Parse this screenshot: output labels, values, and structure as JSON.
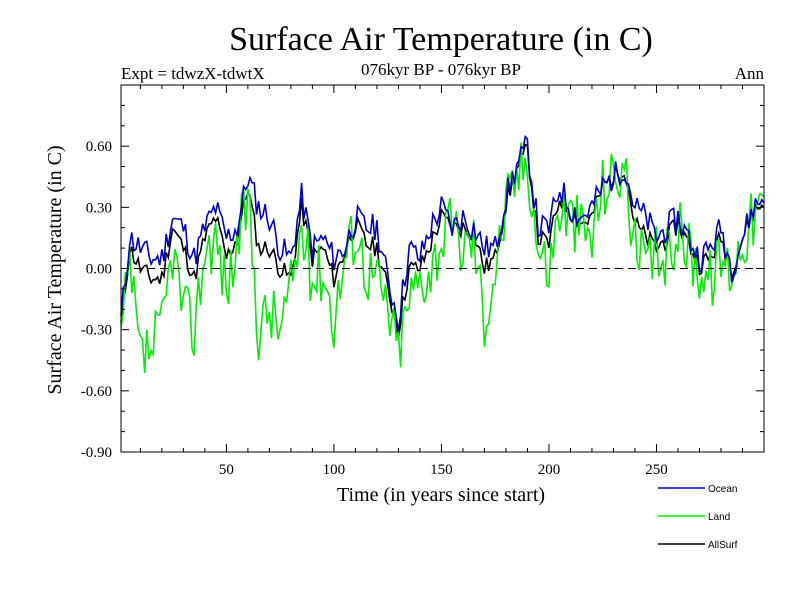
{
  "chart_data": {
    "type": "line",
    "title": "Surface Air Temperature (in C)",
    "subtitle": "076kyr BP - 076kyr BP",
    "left_label": "Expt = tdwzX-tdwtX",
    "right_label": "Ann",
    "xlabel": "Time (in years since start)",
    "ylabel": "Surface Air Temperature (in C)",
    "xlim": [
      1,
      300
    ],
    "ylim": [
      -0.9,
      0.9
    ],
    "x_ticks": [
      50,
      100,
      150,
      200,
      250
    ],
    "x_tick_labels": [
      "50",
      "100",
      "150",
      "200",
      "250"
    ],
    "y_ticks": [
      -0.9,
      -0.6,
      -0.3,
      0.0,
      0.3,
      0.6
    ],
    "y_tick_labels": [
      "-0.90",
      "-0.60",
      "-0.30",
      "0.00",
      "0.30",
      "0.60"
    ],
    "zero_line": 0.0,
    "series": [
      {
        "name": "Ocean",
        "color": "#0000cc",
        "anchors_x": [
          1,
          5,
          10,
          15,
          20,
          25,
          30,
          35,
          40,
          45,
          50,
          55,
          60,
          65,
          70,
          75,
          80,
          85,
          90,
          95,
          100,
          105,
          110,
          115,
          120,
          125,
          130,
          135,
          140,
          145,
          150,
          155,
          160,
          165,
          170,
          175,
          180,
          185,
          190,
          195,
          200,
          205,
          210,
          215,
          220,
          225,
          230,
          235,
          240,
          245,
          250,
          255,
          260,
          265,
          270,
          275,
          280,
          285,
          290,
          295,
          300
        ],
        "anchors_y": [
          -0.25,
          0.15,
          0.1,
          0.05,
          0.05,
          0.25,
          0.2,
          0.05,
          0.2,
          0.3,
          0.15,
          0.2,
          0.45,
          0.3,
          0.25,
          0.1,
          0.05,
          0.35,
          0.1,
          0.15,
          0.05,
          0.1,
          0.25,
          0.2,
          0.2,
          -0.05,
          -0.25,
          0.1,
          0.05,
          0.2,
          0.3,
          0.2,
          0.25,
          0.2,
          0.1,
          0.1,
          0.35,
          0.5,
          0.6,
          0.2,
          0.2,
          0.4,
          0.3,
          0.25,
          0.3,
          0.4,
          0.45,
          0.5,
          0.3,
          0.25,
          0.15,
          0.2,
          0.25,
          0.15,
          0.05,
          0.1,
          0.2,
          0.0,
          0.15,
          0.3,
          0.35
        ]
      },
      {
        "name": "Land",
        "color": "#00ee00",
        "anchors_x": [
          1,
          5,
          10,
          15,
          20,
          25,
          30,
          35,
          40,
          45,
          50,
          55,
          60,
          65,
          70,
          75,
          80,
          85,
          90,
          95,
          100,
          105,
          110,
          115,
          120,
          125,
          130,
          135,
          140,
          145,
          150,
          155,
          160,
          165,
          170,
          175,
          180,
          185,
          190,
          195,
          200,
          205,
          210,
          215,
          220,
          225,
          230,
          235,
          240,
          245,
          250,
          255,
          260,
          265,
          270,
          275,
          280,
          285,
          290,
          295,
          300
        ],
        "anchors_y": [
          -0.35,
          0.0,
          -0.45,
          -0.4,
          -0.3,
          0.1,
          -0.2,
          -0.3,
          0.1,
          0.15,
          -0.1,
          0.1,
          0.35,
          -0.3,
          -0.2,
          -0.3,
          -0.1,
          0.2,
          -0.05,
          0.0,
          -0.25,
          0.05,
          0.2,
          0.0,
          -0.05,
          -0.2,
          -0.4,
          -0.15,
          -0.05,
          0.0,
          0.15,
          0.2,
          0.1,
          0.15,
          -0.25,
          0.0,
          0.3,
          0.45,
          0.55,
          0.1,
          0.0,
          0.3,
          0.25,
          0.2,
          0.15,
          0.4,
          0.45,
          0.5,
          0.1,
          0.0,
          0.05,
          0.05,
          0.2,
          0.1,
          0.0,
          -0.05,
          0.05,
          0.0,
          0.15,
          0.25,
          0.3
        ]
      },
      {
        "name": "AllSurf",
        "color": "#000000",
        "anchors_x": [
          1,
          5,
          10,
          15,
          20,
          25,
          30,
          35,
          40,
          45,
          50,
          55,
          60,
          65,
          70,
          75,
          80,
          85,
          90,
          95,
          100,
          105,
          110,
          115,
          120,
          125,
          130,
          135,
          140,
          145,
          150,
          155,
          160,
          165,
          170,
          175,
          180,
          185,
          190,
          195,
          200,
          205,
          210,
          215,
          220,
          225,
          230,
          235,
          240,
          245,
          250,
          255,
          260,
          265,
          270,
          275,
          280,
          285,
          290,
          295,
          300
        ],
        "anchors_y": [
          -0.28,
          0.1,
          0.0,
          -0.05,
          -0.05,
          0.2,
          0.1,
          -0.05,
          0.15,
          0.25,
          0.05,
          0.15,
          0.4,
          0.1,
          0.1,
          0.0,
          -0.05,
          0.3,
          0.05,
          0.1,
          -0.05,
          0.08,
          0.22,
          0.12,
          0.1,
          -0.1,
          -0.3,
          0.0,
          0.0,
          0.12,
          0.25,
          0.2,
          0.2,
          0.18,
          0.0,
          0.05,
          0.32,
          0.48,
          0.58,
          0.15,
          0.12,
          0.35,
          0.28,
          0.22,
          0.25,
          0.4,
          0.45,
          0.5,
          0.22,
          0.15,
          0.1,
          0.15,
          0.22,
          0.12,
          0.02,
          0.05,
          0.15,
          0.0,
          0.15,
          0.28,
          0.32
        ]
      }
    ],
    "legend": [
      "Ocean",
      "Land",
      "AllSurf"
    ],
    "legend_position": "bottom-right"
  }
}
